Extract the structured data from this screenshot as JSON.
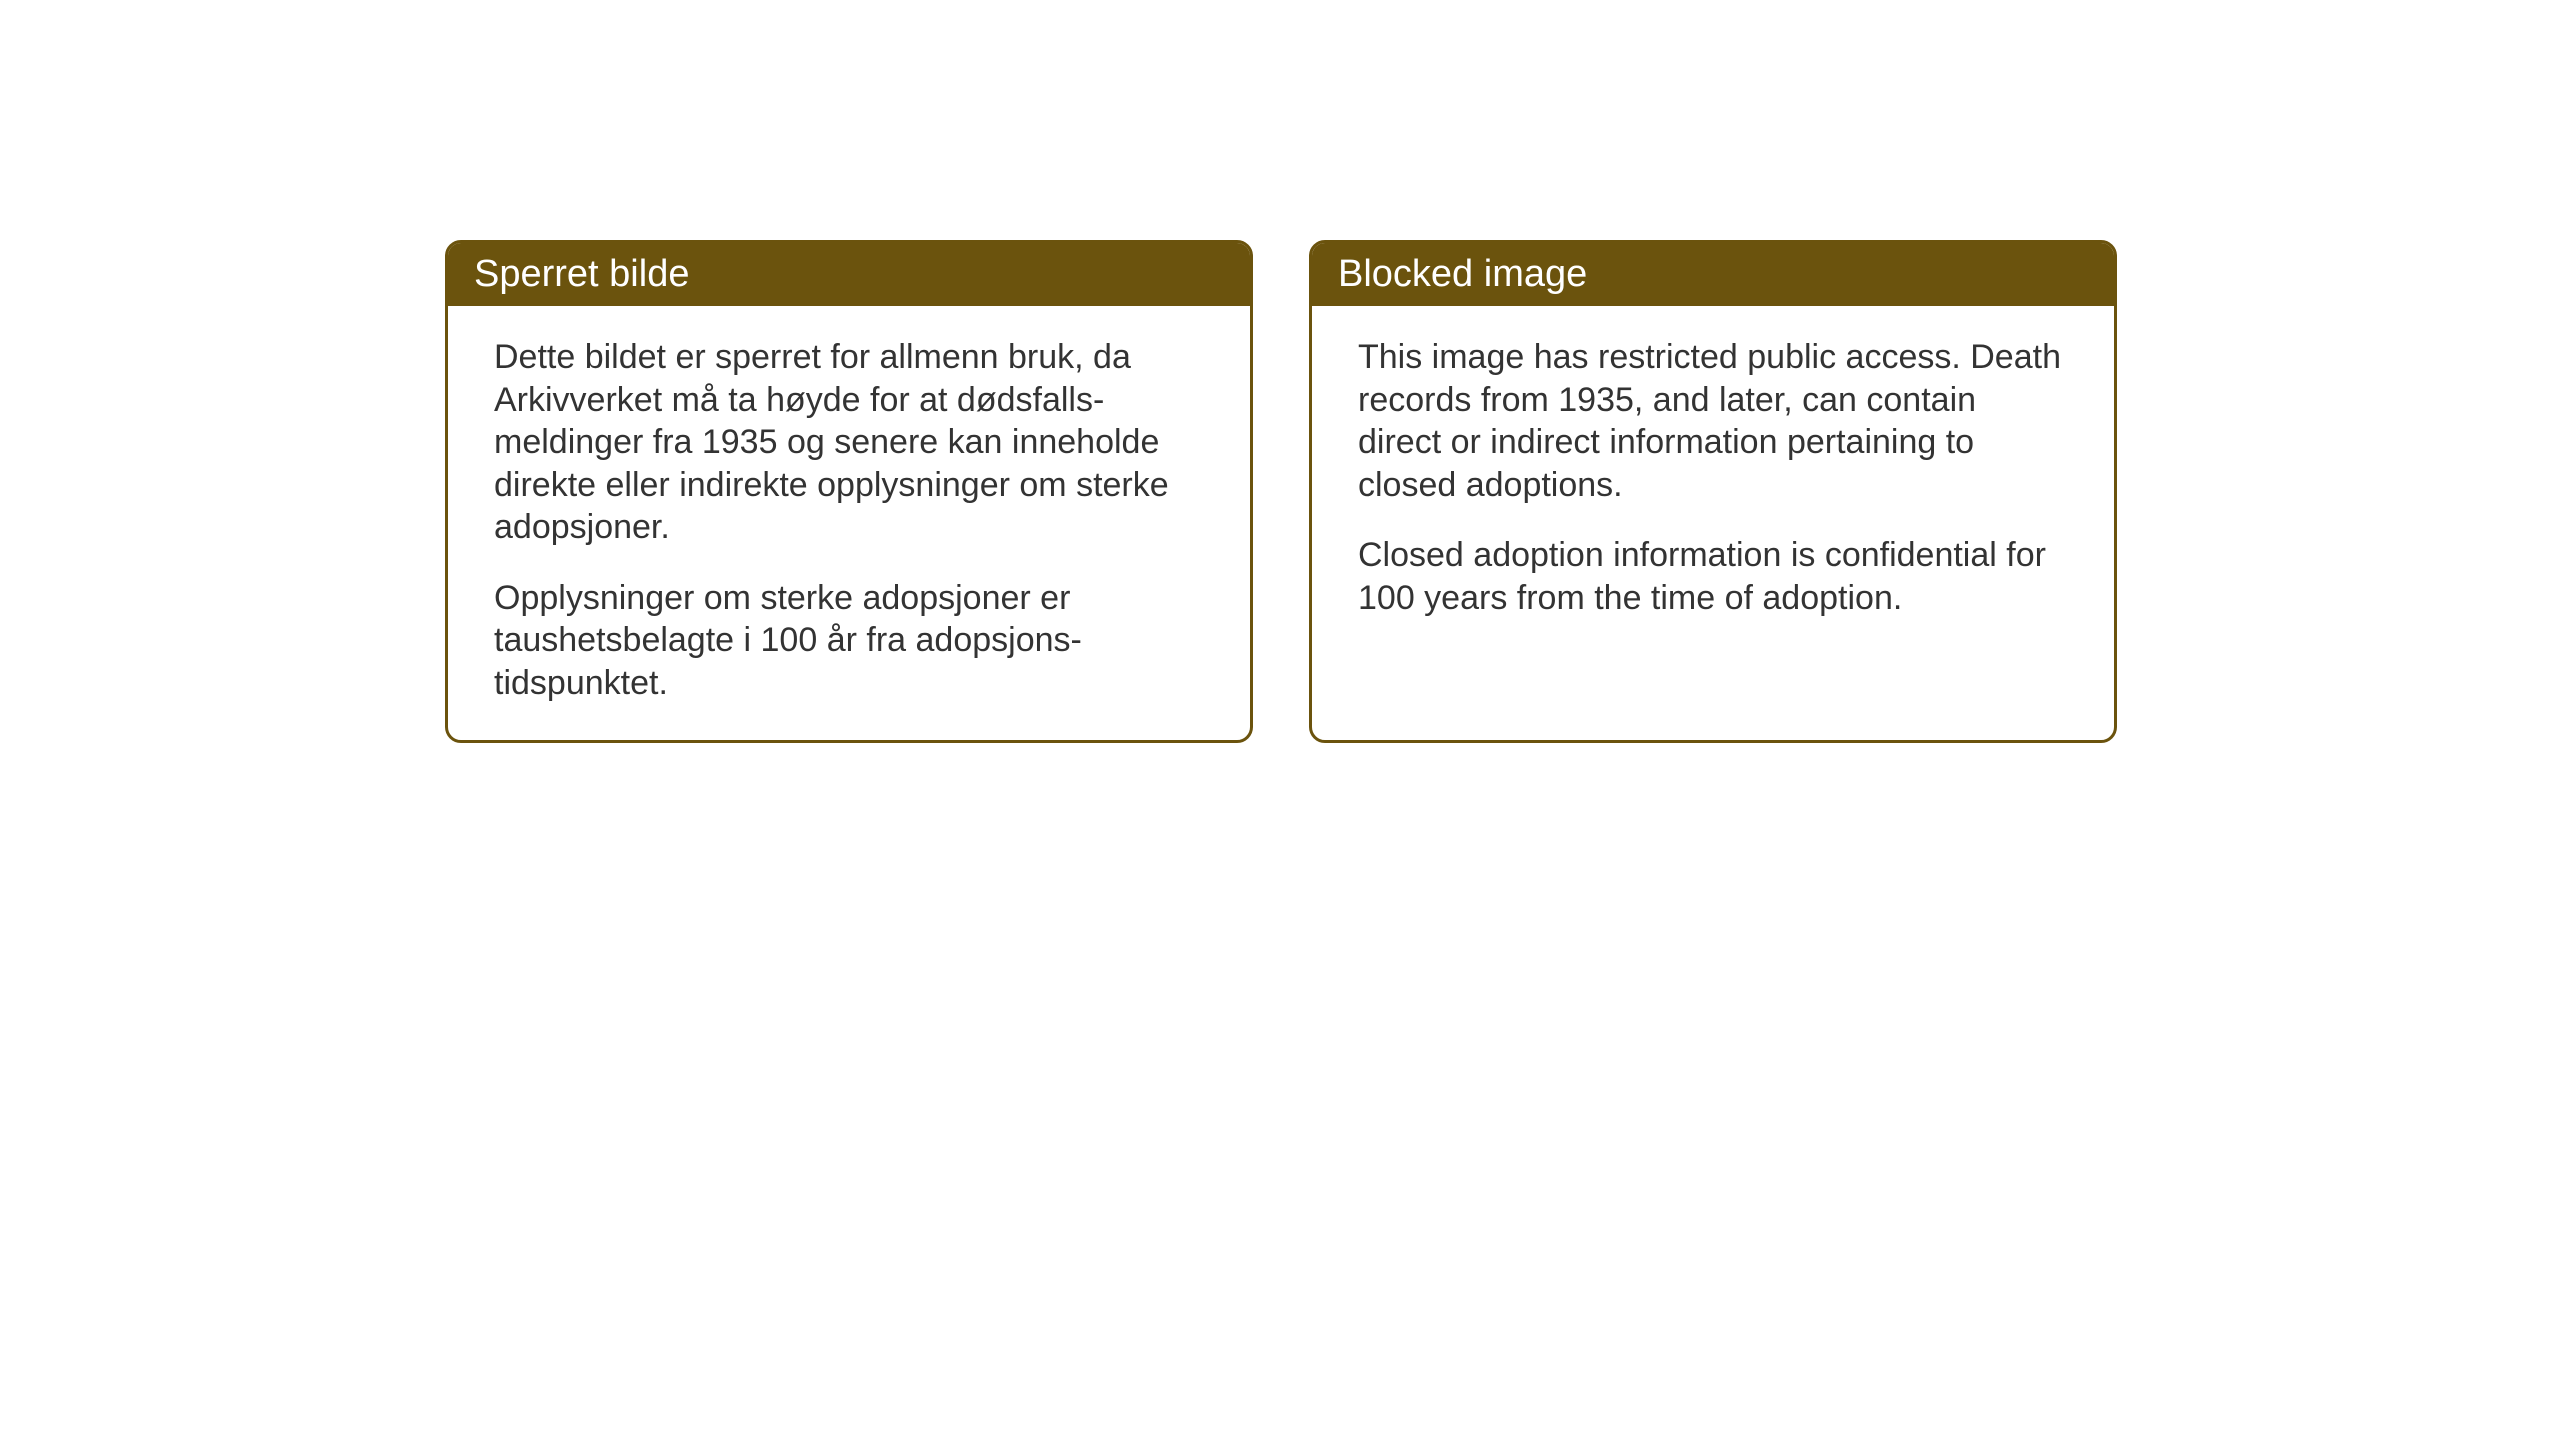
{
  "panels": [
    {
      "title": "Sperret bilde",
      "paragraph1": "Dette bildet er sperret for allmenn bruk, da Arkivverket må ta høyde for at dødsfalls-meldinger fra 1935 og senere kan inneholde direkte eller indirekte opplysninger om sterke adopsjoner.",
      "paragraph2": "Opplysninger om sterke adopsjoner er taushetsbelagte i 100 år fra adopsjons-tidspunktet."
    },
    {
      "title": "Blocked image",
      "paragraph1": "This image has restricted public access. Death records from 1935, and later, can contain direct or indirect information pertaining to closed adoptions.",
      "paragraph2": "Closed adoption information is confidential for 100 years from the time of adoption."
    }
  ],
  "styling": {
    "header_bg_color": "#6b530d",
    "header_text_color": "#ffffff",
    "border_color": "#6b530d",
    "body_text_color": "#333333",
    "page_bg_color": "#ffffff",
    "title_fontsize": 38,
    "body_fontsize": 34,
    "border_radius": 16,
    "border_width": 3
  }
}
